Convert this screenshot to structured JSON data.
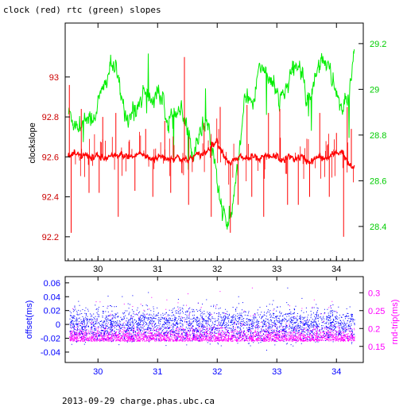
{
  "footer_text": "2013-09-29 charge.phas.ubc.ca",
  "chart_data": [
    {
      "type": "line",
      "title": "clock (red) rtc (green) slopes",
      "xlim": [
        29.45,
        34.45
      ],
      "x_ticks": [
        30,
        31,
        32,
        33,
        34
      ],
      "ylabel_left": "clockslope",
      "ylim_left": [
        92.08,
        93.27
      ],
      "y_ticks_left": [
        92.2,
        92.4,
        92.6,
        92.8,
        93
      ],
      "ylim_right": [
        28.25,
        29.29
      ],
      "y_ticks_right": [
        28.4,
        28.6,
        28.8,
        29,
        29.2
      ],
      "series": [
        {
          "name": "clock",
          "axis": "left",
          "color": "#ff0000",
          "x": [
            29.5,
            29.6,
            29.7,
            29.8,
            29.9,
            30,
            30.1,
            30.2,
            30.3,
            30.4,
            30.5,
            30.6,
            30.7,
            30.8,
            30.9,
            31,
            31.1,
            31.2,
            31.3,
            31.4,
            31.5,
            31.6,
            31.7,
            31.8,
            31.9,
            32,
            32.1,
            32.2,
            32.3,
            32.4,
            32.5,
            32.6,
            32.7,
            32.8,
            32.9,
            33,
            33.1,
            33.2,
            33.3,
            33.4,
            33.5,
            33.6,
            33.7,
            33.8,
            33.9,
            34,
            34.1,
            34.2,
            34.3
          ],
          "y": [
            92.6,
            92.61,
            92.6,
            92.61,
            92.6,
            92.6,
            92.59,
            92.6,
            92.6,
            92.61,
            92.6,
            92.6,
            92.62,
            92.6,
            92.59,
            92.6,
            92.6,
            92.59,
            92.6,
            92.59,
            92.58,
            92.6,
            92.61,
            92.62,
            92.66,
            92.68,
            92.62,
            92.57,
            92.58,
            92.6,
            92.59,
            92.6,
            92.58,
            92.6,
            92.6,
            92.6,
            92.58,
            92.6,
            92.59,
            92.6,
            92.58,
            92.58,
            92.6,
            92.59,
            92.6,
            92.62,
            92.63,
            92.56,
            92.54
          ]
        },
        {
          "name": "rtc",
          "axis": "right",
          "color": "#00ee00",
          "x": [
            29.5,
            29.6,
            29.7,
            29.8,
            29.9,
            30,
            30.1,
            30.2,
            30.3,
            30.4,
            30.5,
            30.6,
            30.7,
            30.8,
            30.9,
            31,
            31.1,
            31.2,
            31.3,
            31.4,
            31.5,
            31.6,
            31.7,
            31.8,
            31.9,
            32,
            32.1,
            32.2,
            32.3,
            32.4,
            32.5,
            32.6,
            32.7,
            32.8,
            32.9,
            33,
            33.1,
            33.2,
            33.3,
            33.4,
            33.5,
            33.6,
            33.7,
            33.8,
            33.9,
            34,
            34.1,
            34.2,
            34.3
          ],
          "y": [
            28.9,
            28.86,
            28.84,
            28.88,
            28.86,
            28.94,
            29.0,
            29.1,
            29.08,
            28.95,
            28.88,
            28.9,
            28.95,
            29.0,
            28.95,
            29.0,
            28.92,
            28.85,
            28.88,
            28.9,
            28.8,
            28.72,
            28.82,
            28.85,
            28.8,
            28.6,
            28.45,
            28.4,
            28.55,
            28.8,
            29.0,
            28.92,
            29.1,
            29.1,
            29.05,
            28.95,
            28.98,
            29.02,
            29.1,
            29.1,
            28.96,
            29.0,
            29.12,
            29.15,
            29.05,
            29.0,
            28.9,
            28.95,
            29.18
          ]
        }
      ],
      "spikes": [
        {
          "x": 29.52,
          "y": 92.96
        },
        {
          "x": 29.55,
          "y": 92.22
        },
        {
          "x": 29.72,
          "y": 92.84
        },
        {
          "x": 29.85,
          "y": 92.42
        },
        {
          "x": 30.02,
          "y": 92.42
        },
        {
          "x": 30.08,
          "y": 92.8
        },
        {
          "x": 30.3,
          "y": 92.82
        },
        {
          "x": 30.34,
          "y": 92.3
        },
        {
          "x": 30.62,
          "y": 92.43
        },
        {
          "x": 30.8,
          "y": 92.74
        },
        {
          "x": 30.92,
          "y": 92.4
        },
        {
          "x": 31.12,
          "y": 92.78
        },
        {
          "x": 31.22,
          "y": 92.42
        },
        {
          "x": 31.45,
          "y": 93.1
        },
        {
          "x": 31.52,
          "y": 92.36
        },
        {
          "x": 31.78,
          "y": 92.77
        },
        {
          "x": 31.9,
          "y": 92.3
        },
        {
          "x": 32.05,
          "y": 92.85
        },
        {
          "x": 32.22,
          "y": 92.22
        },
        {
          "x": 32.35,
          "y": 92.36
        },
        {
          "x": 32.5,
          "y": 92.86
        },
        {
          "x": 32.58,
          "y": 92.4
        },
        {
          "x": 32.78,
          "y": 92.3
        },
        {
          "x": 32.86,
          "y": 92.82
        },
        {
          "x": 33.05,
          "y": 92.84
        },
        {
          "x": 33.18,
          "y": 92.36
        },
        {
          "x": 33.36,
          "y": 92.36
        },
        {
          "x": 33.55,
          "y": 92.4
        },
        {
          "x": 33.72,
          "y": 92.82
        },
        {
          "x": 33.88,
          "y": 92.4
        },
        {
          "x": 34.0,
          "y": 92.72
        },
        {
          "x": 34.12,
          "y": 92.2
        },
        {
          "x": 34.18,
          "y": 92.85
        },
        {
          "x": 34.25,
          "y": 92.74
        }
      ]
    },
    {
      "type": "scatter",
      "xlim": [
        29.45,
        34.45
      ],
      "x_ticks": [
        30,
        31,
        32,
        33,
        34
      ],
      "ylabel_left": "offset(ms)",
      "ylim_left": [
        -0.055,
        0.069
      ],
      "y_ticks_left": [
        -0.04,
        -0.02,
        0,
        0.02,
        0.04,
        0.06
      ],
      "ylabel_right": "rnd-trip(ms)",
      "ylim_right": [
        0.105,
        0.345
      ],
      "y_ticks_right": [
        0.15,
        0.2,
        0.25,
        0.3
      ],
      "series": [
        {
          "name": "offset",
          "axis": "left",
          "color": "#0000ff",
          "center": 0.0,
          "spread": 0.028
        },
        {
          "name": "rnd-trip",
          "axis": "right",
          "color": "#ff00ff",
          "center": 0.17,
          "spread": 0.04
        }
      ]
    }
  ]
}
